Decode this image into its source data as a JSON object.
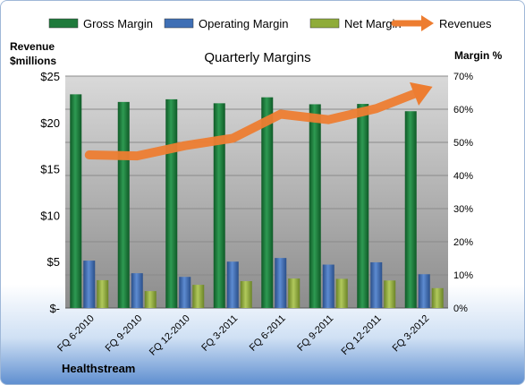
{
  "chart_data": {
    "type": "bar",
    "title": "Quarterly Margins",
    "company": "Healthstream",
    "y_left_label": [
      "Revenue",
      "$millions"
    ],
    "y_right_label": "Margin %",
    "categories": [
      "FQ 6-2010",
      "FQ 9-2010",
      "FQ 12-2010",
      "FQ 3-2011",
      "FQ 6-2011",
      "FQ 9-2011",
      "FQ 12-2011",
      "FQ 3-2012"
    ],
    "y_left_ticks": [
      "$-",
      "$5",
      "$10",
      "$15",
      "$20",
      "$25"
    ],
    "y_left_range": [
      0,
      25
    ],
    "y_right_ticks": [
      "0%",
      "10%",
      "20%",
      "30%",
      "40%",
      "50%",
      "60%",
      "70%"
    ],
    "y_right_range": [
      0,
      70
    ],
    "legend_position": "top",
    "series": [
      {
        "name": "Gross Margin",
        "axis": "right",
        "kind": "bar",
        "color": "#1f7a3c",
        "values": [
          64.5,
          62.2,
          63.0,
          61.8,
          63.6,
          61.5,
          61.6,
          59.4
        ]
      },
      {
        "name": "Operating Margin",
        "axis": "right",
        "kind": "bar",
        "color": "#3f6fb5",
        "values": [
          14.3,
          10.5,
          9.4,
          14.0,
          15.1,
          13.1,
          13.8,
          10.2
        ]
      },
      {
        "name": "Net Margin",
        "axis": "right",
        "kind": "bar",
        "color": "#8fac3a",
        "values": [
          8.4,
          5.1,
          7.0,
          8.1,
          8.9,
          8.8,
          8.3,
          6.0
        ]
      },
      {
        "name": "Revenues",
        "axis": "left",
        "kind": "arrow-line",
        "color": "#ed7d31",
        "values": [
          16.5,
          16.4,
          17.5,
          18.3,
          20.9,
          20.3,
          21.5,
          23.5
        ]
      }
    ],
    "grid": true
  }
}
